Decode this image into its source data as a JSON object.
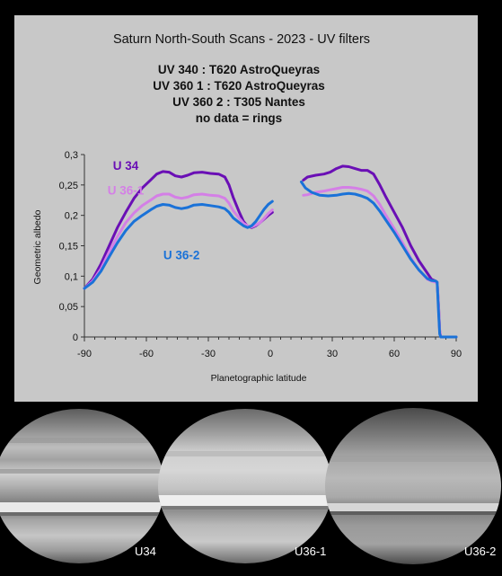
{
  "chart_data": {
    "type": "line",
    "title": "Saturn North-South Scans - 2023 - UV filters",
    "subtitle_lines": [
      "UV 340 : T620 AstroQueyras",
      "UV 360 1 : T620 AstroQueyras",
      "UV 360 2 : T305 Nantes",
      "no data = rings"
    ],
    "xlabel": "Planetographic latitude",
    "ylabel": "Geometric albedo",
    "xlim": [
      -90,
      90
    ],
    "ylim": [
      0,
      0.3
    ],
    "xticks": [
      -90,
      -60,
      -30,
      0,
      30,
      60,
      90
    ],
    "xtick_labels": [
      "-90",
      "-60",
      "-30",
      "0",
      "30",
      "60",
      "90"
    ],
    "yticks": [
      0,
      0.05,
      0.1,
      0.15,
      0.2,
      0.25,
      0.3
    ],
    "ytick_labels": [
      "0",
      "0,05",
      "0,1",
      "0,15",
      "0,2",
      "0,25",
      "0,3"
    ],
    "grid": false,
    "legend": "inline labels on curves",
    "series": [
      {
        "name": "U 34",
        "color": "#6a0fb5",
        "segments": [
          [
            [
              -90,
              0.08
            ],
            [
              -86,
              0.095
            ],
            [
              -82,
              0.12
            ],
            [
              -78,
              0.15
            ],
            [
              -74,
              0.18
            ],
            [
              -70,
              0.205
            ],
            [
              -66,
              0.228
            ],
            [
              -62,
              0.245
            ],
            [
              -58,
              0.258
            ],
            [
              -55,
              0.268
            ],
            [
              -52,
              0.272
            ],
            [
              -49,
              0.271
            ],
            [
              -46,
              0.265
            ],
            [
              -43,
              0.263
            ],
            [
              -40,
              0.266
            ],
            [
              -37,
              0.27
            ],
            [
              -33,
              0.271
            ],
            [
              -29,
              0.269
            ],
            [
              -25,
              0.268
            ],
            [
              -22,
              0.263
            ],
            [
              -20,
              0.25
            ],
            [
              -18,
              0.23
            ],
            [
              -15,
              0.205
            ],
            [
              -13,
              0.19
            ],
            [
              -11,
              0.182
            ],
            [
              -9,
              0.18
            ],
            [
              -7,
              0.183
            ],
            [
              -5,
              0.188
            ],
            [
              -3,
              0.194
            ],
            [
              -1,
              0.2
            ],
            [
              1,
              0.205
            ]
          ],
          [
            [
              16,
              0.258
            ],
            [
              18,
              0.263
            ],
            [
              22,
              0.266
            ],
            [
              26,
              0.268
            ],
            [
              29,
              0.271
            ],
            [
              32,
              0.277
            ],
            [
              35,
              0.281
            ],
            [
              38,
              0.28
            ],
            [
              41,
              0.277
            ],
            [
              44,
              0.274
            ],
            [
              47,
              0.274
            ],
            [
              50,
              0.268
            ],
            [
              53,
              0.25
            ],
            [
              56,
              0.23
            ],
            [
              60,
              0.205
            ],
            [
              64,
              0.18
            ],
            [
              68,
              0.15
            ],
            [
              72,
              0.125
            ],
            [
              76,
              0.105
            ],
            [
              78,
              0.095
            ],
            [
              80,
              0.092
            ],
            [
              80.8,
              0.09
            ],
            [
              81.5,
              0.05
            ],
            [
              82,
              0.01
            ],
            [
              82.5,
              0.0
            ],
            [
              90,
              0.0
            ]
          ]
        ]
      },
      {
        "name": "U 36-1",
        "color": "#d47fe6",
        "segments": [
          [
            [
              -90,
              0.08
            ],
            [
              -86,
              0.092
            ],
            [
              -82,
              0.112
            ],
            [
              -78,
              0.14
            ],
            [
              -74,
              0.165
            ],
            [
              -70,
              0.188
            ],
            [
              -66,
              0.204
            ],
            [
              -62,
              0.216
            ],
            [
              -58,
              0.225
            ],
            [
              -55,
              0.232
            ],
            [
              -52,
              0.235
            ],
            [
              -49,
              0.235
            ],
            [
              -46,
              0.23
            ],
            [
              -43,
              0.228
            ],
            [
              -40,
              0.23
            ],
            [
              -37,
              0.234
            ],
            [
              -33,
              0.235
            ],
            [
              -29,
              0.233
            ],
            [
              -25,
              0.232
            ],
            [
              -22,
              0.228
            ],
            [
              -20,
              0.22
            ],
            [
              -18,
              0.208
            ],
            [
              -15,
              0.195
            ],
            [
              -13,
              0.187
            ],
            [
              -11,
              0.183
            ],
            [
              -9,
              0.181
            ],
            [
              -7,
              0.184
            ],
            [
              -5,
              0.188
            ],
            [
              -3,
              0.195
            ],
            [
              -1,
              0.203
            ],
            [
              1,
              0.209
            ]
          ],
          [
            [
              16,
              0.233
            ],
            [
              18,
              0.234
            ],
            [
              22,
              0.238
            ],
            [
              26,
              0.24
            ],
            [
              29,
              0.242
            ],
            [
              32,
              0.244
            ],
            [
              35,
              0.246
            ],
            [
              38,
              0.246
            ],
            [
              41,
              0.245
            ],
            [
              44,
              0.243
            ],
            [
              47,
              0.24
            ],
            [
              50,
              0.232
            ],
            [
              53,
              0.218
            ],
            [
              56,
              0.2
            ],
            [
              60,
              0.178
            ],
            [
              64,
              0.155
            ],
            [
              68,
              0.13
            ],
            [
              72,
              0.11
            ],
            [
              76,
              0.095
            ],
            [
              78,
              0.092
            ],
            [
              80,
              0.09
            ],
            [
              80.8,
              0.09
            ],
            [
              81.5,
              0.05
            ],
            [
              82,
              0.01
            ],
            [
              82.5,
              0.0
            ],
            [
              90,
              0.0
            ]
          ]
        ]
      },
      {
        "name": "U 36-2",
        "color": "#1a72d8",
        "segments": [
          [
            [
              -90,
              0.08
            ],
            [
              -86,
              0.09
            ],
            [
              -82,
              0.108
            ],
            [
              -78,
              0.132
            ],
            [
              -74,
              0.155
            ],
            [
              -70,
              0.175
            ],
            [
              -66,
              0.19
            ],
            [
              -62,
              0.2
            ],
            [
              -58,
              0.209
            ],
            [
              -55,
              0.215
            ],
            [
              -52,
              0.218
            ],
            [
              -49,
              0.217
            ],
            [
              -46,
              0.213
            ],
            [
              -43,
              0.211
            ],
            [
              -40,
              0.213
            ],
            [
              -37,
              0.217
            ],
            [
              -33,
              0.218
            ],
            [
              -29,
              0.216
            ],
            [
              -25,
              0.214
            ],
            [
              -22,
              0.211
            ],
            [
              -20,
              0.205
            ],
            [
              -18,
              0.196
            ],
            [
              -15,
              0.188
            ],
            [
              -13,
              0.183
            ],
            [
              -11,
              0.18
            ],
            [
              -9,
              0.183
            ],
            [
              -7,
              0.19
            ],
            [
              -5,
              0.2
            ],
            [
              -3,
              0.21
            ],
            [
              -1,
              0.218
            ],
            [
              1,
              0.223
            ]
          ],
          [
            [
              15,
              0.255
            ],
            [
              17,
              0.245
            ],
            [
              20,
              0.238
            ],
            [
              24,
              0.233
            ],
            [
              28,
              0.232
            ],
            [
              32,
              0.233
            ],
            [
              35,
              0.235
            ],
            [
              38,
              0.236
            ],
            [
              41,
              0.235
            ],
            [
              44,
              0.232
            ],
            [
              47,
              0.228
            ],
            [
              50,
              0.22
            ],
            [
              53,
              0.207
            ],
            [
              56,
              0.192
            ],
            [
              60,
              0.172
            ],
            [
              64,
              0.15
            ],
            [
              68,
              0.128
            ],
            [
              72,
              0.11
            ],
            [
              76,
              0.096
            ],
            [
              78,
              0.093
            ],
            [
              80,
              0.092
            ],
            [
              80.8,
              0.09
            ],
            [
              81.5,
              0.04
            ],
            [
              82,
              0.005
            ],
            [
              82.5,
              0.0
            ],
            [
              90,
              0.0
            ]
          ]
        ]
      }
    ]
  },
  "images": {
    "captions": [
      "U34",
      "U36-1",
      "U36-2"
    ]
  }
}
